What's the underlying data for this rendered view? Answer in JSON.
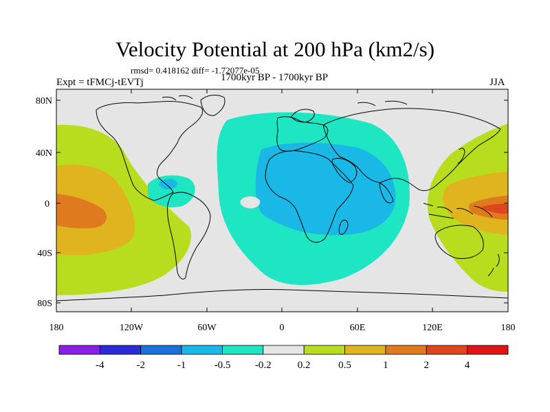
{
  "figure": {
    "title": "Velocity Potential at 200 hPa (km2/s)",
    "stats": "rmsd= 0.418162 diff= -1.72077e-05",
    "experiment": "Expt = tFMCj-tEVTj",
    "period": "1700kyr BP - 1700kyr BP",
    "season": "JJA"
  },
  "axes": {
    "y_ticks": [
      "80N",
      "40N",
      "0",
      "40S",
      "80S"
    ],
    "y_values": [
      80,
      40,
      0,
      -40,
      -80
    ],
    "x_ticks": [
      "180",
      "120W",
      "60W",
      "0",
      "60E",
      "120E",
      "180"
    ],
    "x_values": [
      -180,
      -120,
      -60,
      0,
      60,
      120,
      180
    ],
    "lon_range": [
      -180,
      180
    ],
    "lat_range": [
      -90,
      90
    ]
  },
  "colorbar": {
    "labels": [
      "-4",
      "-2",
      "-1",
      "-0.5",
      "-0.2",
      "0.2",
      "0.5",
      "1",
      "2",
      "4"
    ],
    "colors": [
      "#8a1ee6",
      "#2a2ad8",
      "#1a72d8",
      "#1ab8e6",
      "#1ee6c3",
      "#e5e5e5",
      "#b8dc1e",
      "#e0b41e",
      "#e07a1e",
      "#e0461e",
      "#e01414"
    ]
  },
  "colors": {
    "neutral": "#e5e5e5",
    "coast": "#000000"
  }
}
